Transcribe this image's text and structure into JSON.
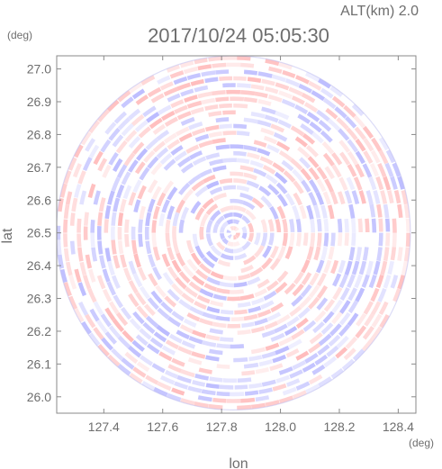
{
  "chart_data": {
    "type": "heatmap",
    "subtype": "radar-ppi-scan",
    "title": "2017/10/24 05:05:30",
    "altitude_label": "ALT(km) 2.0",
    "xlabel": "lon",
    "ylabel": "lat",
    "x_unit": "(deg)",
    "y_unit": "(deg)",
    "xlim": [
      127.24,
      128.46
    ],
    "ylim": [
      25.95,
      27.04
    ],
    "x_ticks": [
      "127.4",
      "127.6",
      "127.8",
      "128.0",
      "128.2",
      "128.4"
    ],
    "y_ticks": [
      "26.0",
      "26.1",
      "26.2",
      "26.3",
      "26.4",
      "26.5",
      "26.6",
      "26.7",
      "26.8",
      "26.9",
      "27.0"
    ],
    "center": {
      "lon": 127.84,
      "lat": 26.5
    },
    "radius_lat_deg": 0.54,
    "colors": {
      "positive": "#ff7a7a",
      "negative": "#7a7aff",
      "background": "#ffffff",
      "frame": "#888888"
    }
  }
}
